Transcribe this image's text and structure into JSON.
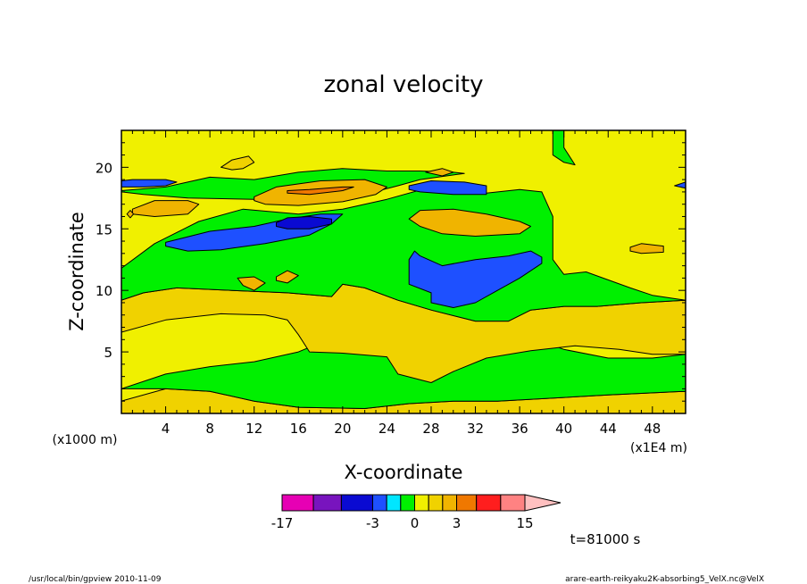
{
  "chart_data": {
    "type": "heatmap",
    "title": "zonal velocity",
    "xlabel": "X-coordinate",
    "ylabel": "Z-coordinate",
    "x_unit": "(x1E4 m)",
    "z_unit": "(x1000 m)",
    "xlim": [
      0,
      51
    ],
    "ylim": [
      0,
      23
    ],
    "xticks": [
      4,
      8,
      12,
      16,
      20,
      24,
      28,
      32,
      36,
      40,
      44,
      48
    ],
    "yticks": [
      5,
      10,
      15,
      20
    ],
    "levels": [
      -17,
      -12,
      -8,
      -3,
      -2,
      -1,
      0,
      1,
      2,
      3,
      5,
      8,
      11,
      15
    ],
    "colors": [
      "#e600b4",
      "#7814be",
      "#0a0ad2",
      "#1e50ff",
      "#00e6ff",
      "#00f000",
      "#f0f000",
      "#f0d200",
      "#f0b400",
      "#f07800",
      "#ff1e1e",
      "#ff8282",
      "#ffc0c0"
    ],
    "colorbar_labels": [
      {
        "level": -17,
        "text": "-17"
      },
      {
        "level": -3,
        "text": "-3"
      },
      {
        "level": 0,
        "text": "0"
      },
      {
        "level": 3,
        "text": "3"
      },
      {
        "level": 15,
        "text": "15"
      }
    ],
    "time_label": "t=81000 s",
    "regions": [
      {
        "value": 1.2,
        "points": [
          [
            0,
            1.0
          ],
          [
            4,
            2.0
          ],
          [
            8,
            1.8
          ],
          [
            12,
            1.0
          ],
          [
            16,
            0.5
          ],
          [
            22,
            0.4
          ],
          [
            26,
            0.8
          ],
          [
            30,
            1.0
          ],
          [
            34,
            1.0
          ],
          [
            38,
            1.2
          ],
          [
            44,
            1.5
          ],
          [
            51,
            1.8
          ],
          [
            51,
            0
          ],
          [
            0,
            0
          ]
        ]
      },
      {
        "value": -0.5,
        "points": [
          [
            0,
            2.0
          ],
          [
            4,
            3.2
          ],
          [
            8,
            3.8
          ],
          [
            12,
            4.2
          ],
          [
            16,
            5.0
          ],
          [
            20,
            6.5
          ],
          [
            24,
            7.3
          ],
          [
            28,
            7.5
          ],
          [
            32,
            7.3
          ],
          [
            36,
            6.5
          ],
          [
            40,
            5.2
          ],
          [
            44,
            4.5
          ],
          [
            48,
            4.5
          ],
          [
            51,
            4.8
          ],
          [
            51,
            1.8
          ],
          [
            44,
            1.5
          ],
          [
            38,
            1.2
          ],
          [
            34,
            1.0
          ],
          [
            30,
            1.0
          ],
          [
            26,
            0.8
          ],
          [
            22,
            0.4
          ],
          [
            16,
            0.5
          ],
          [
            12,
            1.0
          ],
          [
            8,
            1.8
          ],
          [
            4,
            2.0
          ]
        ]
      },
      {
        "value": 1.2,
        "points": [
          [
            0,
            6.6
          ],
          [
            4,
            7.6
          ],
          [
            9,
            8.1
          ],
          [
            13,
            8.0
          ],
          [
            15,
            7.6
          ],
          [
            16,
            6.4
          ],
          [
            17,
            5.0
          ],
          [
            20,
            4.9
          ],
          [
            24,
            4.6
          ],
          [
            25,
            3.2
          ],
          [
            28,
            2.5
          ],
          [
            30,
            3.4
          ],
          [
            33,
            4.5
          ],
          [
            37,
            5.1
          ],
          [
            41,
            5.5
          ],
          [
            45,
            5.2
          ],
          [
            48,
            4.8
          ],
          [
            51,
            4.8
          ],
          [
            51,
            9.2
          ],
          [
            47,
            9.0
          ],
          [
            43,
            8.7
          ],
          [
            40,
            8.7
          ],
          [
            37,
            8.4
          ],
          [
            35,
            7.5
          ],
          [
            32,
            7.5
          ],
          [
            28,
            8.4
          ],
          [
            25,
            9.2
          ],
          [
            22,
            10.2
          ],
          [
            20,
            10.5
          ],
          [
            19,
            9.5
          ],
          [
            15,
            9.8
          ],
          [
            10,
            10.0
          ],
          [
            5,
            10.2
          ],
          [
            2,
            9.8
          ],
          [
            0,
            9.2
          ]
        ]
      },
      {
        "value": -0.5,
        "points": [
          [
            0,
            11.8
          ],
          [
            3,
            13.8
          ],
          [
            7,
            15.6
          ],
          [
            11,
            16.6
          ],
          [
            16,
            16.2
          ],
          [
            20,
            16.6
          ],
          [
            24,
            17.4
          ],
          [
            28,
            18.4
          ],
          [
            31,
            18.2
          ],
          [
            33,
            17.9
          ],
          [
            36,
            18.2
          ],
          [
            38,
            18.0
          ],
          [
            39,
            16.0
          ],
          [
            39,
            12.5
          ],
          [
            40,
            11.3
          ],
          [
            42,
            11.5
          ],
          [
            46,
            10.2
          ],
          [
            48,
            9.6
          ],
          [
            51,
            9.2
          ],
          [
            47,
            9.0
          ],
          [
            43,
            8.7
          ],
          [
            40,
            8.7
          ],
          [
            37,
            8.4
          ],
          [
            35,
            7.5
          ],
          [
            32,
            7.5
          ],
          [
            28,
            8.4
          ],
          [
            25,
            9.2
          ],
          [
            22,
            10.2
          ],
          [
            20,
            10.5
          ],
          [
            19,
            9.5
          ],
          [
            15,
            9.8
          ],
          [
            10,
            10.0
          ],
          [
            5,
            10.2
          ],
          [
            2,
            9.8
          ],
          [
            0,
            9.2
          ]
        ]
      },
      {
        "value": -0.5,
        "points": [
          [
            0,
            18.1
          ],
          [
            4,
            18.4
          ],
          [
            8,
            19.2
          ],
          [
            12,
            19.0
          ],
          [
            16,
            19.6
          ],
          [
            20,
            19.9
          ],
          [
            24,
            19.7
          ],
          [
            27,
            19.7
          ],
          [
            30,
            19.6
          ],
          [
            31,
            19.5
          ],
          [
            27,
            19.0
          ],
          [
            25,
            18.5
          ],
          [
            22,
            17.8
          ],
          [
            18,
            17.5
          ],
          [
            12,
            17.4
          ],
          [
            6,
            17.5
          ],
          [
            2,
            17.8
          ],
          [
            0,
            18.0
          ]
        ]
      },
      {
        "value": -0.5,
        "points": [
          [
            39,
            23
          ],
          [
            39,
            21
          ],
          [
            40,
            20.4
          ],
          [
            41,
            20.2
          ],
          [
            40,
            21.6
          ],
          [
            40,
            23
          ]
        ]
      },
      {
        "value": -2.5,
        "points": [
          [
            4,
            13.9
          ],
          [
            8,
            14.8
          ],
          [
            12,
            15.2
          ],
          [
            15,
            15.8
          ],
          [
            18,
            16.2
          ],
          [
            20,
            16.2
          ],
          [
            19,
            15.4
          ],
          [
            17,
            14.5
          ],
          [
            13,
            13.8
          ],
          [
            9,
            13.3
          ],
          [
            6,
            13.2
          ],
          [
            4,
            13.6
          ]
        ]
      },
      {
        "value": -5,
        "points": [
          [
            14,
            15.5
          ],
          [
            15,
            15.9
          ],
          [
            17,
            16.0
          ],
          [
            19,
            15.8
          ],
          [
            19,
            15.4
          ],
          [
            17,
            15.0
          ],
          [
            15,
            15.0
          ],
          [
            14,
            15.2
          ]
        ]
      },
      {
        "value": -2.5,
        "points": [
          [
            26,
            12.5
          ],
          [
            26.5,
            13.2
          ],
          [
            27,
            12.8
          ],
          [
            29,
            12.0
          ],
          [
            32,
            12.5
          ],
          [
            35,
            12.8
          ],
          [
            37,
            13.2
          ],
          [
            38,
            12.7
          ],
          [
            38,
            12.2
          ],
          [
            36,
            11.0
          ],
          [
            34,
            10.0
          ],
          [
            32,
            9.0
          ],
          [
            30,
            8.6
          ],
          [
            28,
            9.0
          ],
          [
            28,
            9.8
          ],
          [
            26,
            10.5
          ],
          [
            26,
            11.5
          ]
        ]
      },
      {
        "value": -2.5,
        "points": [
          [
            26,
            18.5
          ],
          [
            28,
            18.9
          ],
          [
            31,
            18.8
          ],
          [
            33,
            18.5
          ],
          [
            33,
            17.8
          ],
          [
            30,
            17.8
          ],
          [
            27,
            18.0
          ],
          [
            26,
            18.2
          ]
        ]
      },
      {
        "value": -2.5,
        "points": [
          [
            0,
            18.4
          ],
          [
            2,
            18.4
          ],
          [
            4,
            18.5
          ],
          [
            5,
            18.8
          ],
          [
            4,
            19.0
          ],
          [
            1,
            19.0
          ],
          [
            0,
            18.9
          ]
        ]
      },
      {
        "value": -2.5,
        "points": [
          [
            51,
            18.3
          ],
          [
            50,
            18.5
          ],
          [
            51,
            18.8
          ]
        ]
      },
      {
        "value": 2.5,
        "points": [
          [
            12,
            17.6
          ],
          [
            14,
            18.4
          ],
          [
            18,
            18.9
          ],
          [
            22,
            19.0
          ],
          [
            24,
            18.4
          ],
          [
            23,
            17.8
          ],
          [
            20,
            17.2
          ],
          [
            16,
            16.9
          ],
          [
            13,
            17.0
          ],
          [
            12,
            17.3
          ]
        ]
      },
      {
        "value": 4,
        "points": [
          [
            15,
            18.1
          ],
          [
            17,
            18.2
          ],
          [
            20,
            18.4
          ],
          [
            21,
            18.4
          ],
          [
            20,
            18.1
          ],
          [
            17,
            17.8
          ],
          [
            15,
            17.9
          ]
        ]
      },
      {
        "value": 2.5,
        "points": [
          [
            26,
            15.8
          ],
          [
            27,
            16.5
          ],
          [
            30,
            16.6
          ],
          [
            33,
            16.2
          ],
          [
            36,
            15.6
          ],
          [
            37,
            15.2
          ],
          [
            36,
            14.6
          ],
          [
            32,
            14.4
          ],
          [
            29,
            14.6
          ],
          [
            27,
            15.2
          ]
        ]
      },
      {
        "value": 2.5,
        "points": [
          [
            1,
            16.6
          ],
          [
            3,
            17.3
          ],
          [
            6,
            17.3
          ],
          [
            7,
            17.0
          ],
          [
            6,
            16.2
          ],
          [
            3,
            16.0
          ],
          [
            1,
            16.2
          ]
        ]
      },
      {
        "value": 2.5,
        "points": [
          [
            46,
            13.5
          ],
          [
            47,
            13.8
          ],
          [
            49,
            13.6
          ],
          [
            49,
            13.1
          ],
          [
            47,
            13.0
          ],
          [
            46,
            13.2
          ]
        ]
      },
      {
        "value": 2.5,
        "points": [
          [
            10.5,
            11.0
          ],
          [
            12,
            11.1
          ],
          [
            13,
            10.6
          ],
          [
            12,
            10.0
          ],
          [
            11,
            10.4
          ]
        ]
      },
      {
        "value": 2.5,
        "points": [
          [
            14,
            11.1
          ],
          [
            15,
            11.6
          ],
          [
            16,
            11.2
          ],
          [
            15,
            10.6
          ],
          [
            14,
            10.8
          ]
        ]
      },
      {
        "value": 2.5,
        "points": [
          [
            27.5,
            19.6
          ],
          [
            29,
            19.9
          ],
          [
            30,
            19.6
          ],
          [
            29,
            19.3
          ]
        ]
      },
      {
        "value": 2.5,
        "points": [
          [
            0.5,
            16.2
          ],
          [
            0.8,
            16.5
          ],
          [
            1.1,
            16.2
          ],
          [
            0.8,
            15.9
          ]
        ]
      },
      {
        "value": 1.2,
        "points": [
          [
            9,
            20.0
          ],
          [
            10,
            20.6
          ],
          [
            11.5,
            20.9
          ],
          [
            12,
            20.4
          ],
          [
            11,
            19.9
          ],
          [
            10,
            19.8
          ]
        ]
      }
    ]
  },
  "footer": {
    "left": "/usr/local/bin/gpview 2010-11-09",
    "right": "arare-earth-reikyaku2K-absorbing5_VelX.nc@VelX"
  }
}
